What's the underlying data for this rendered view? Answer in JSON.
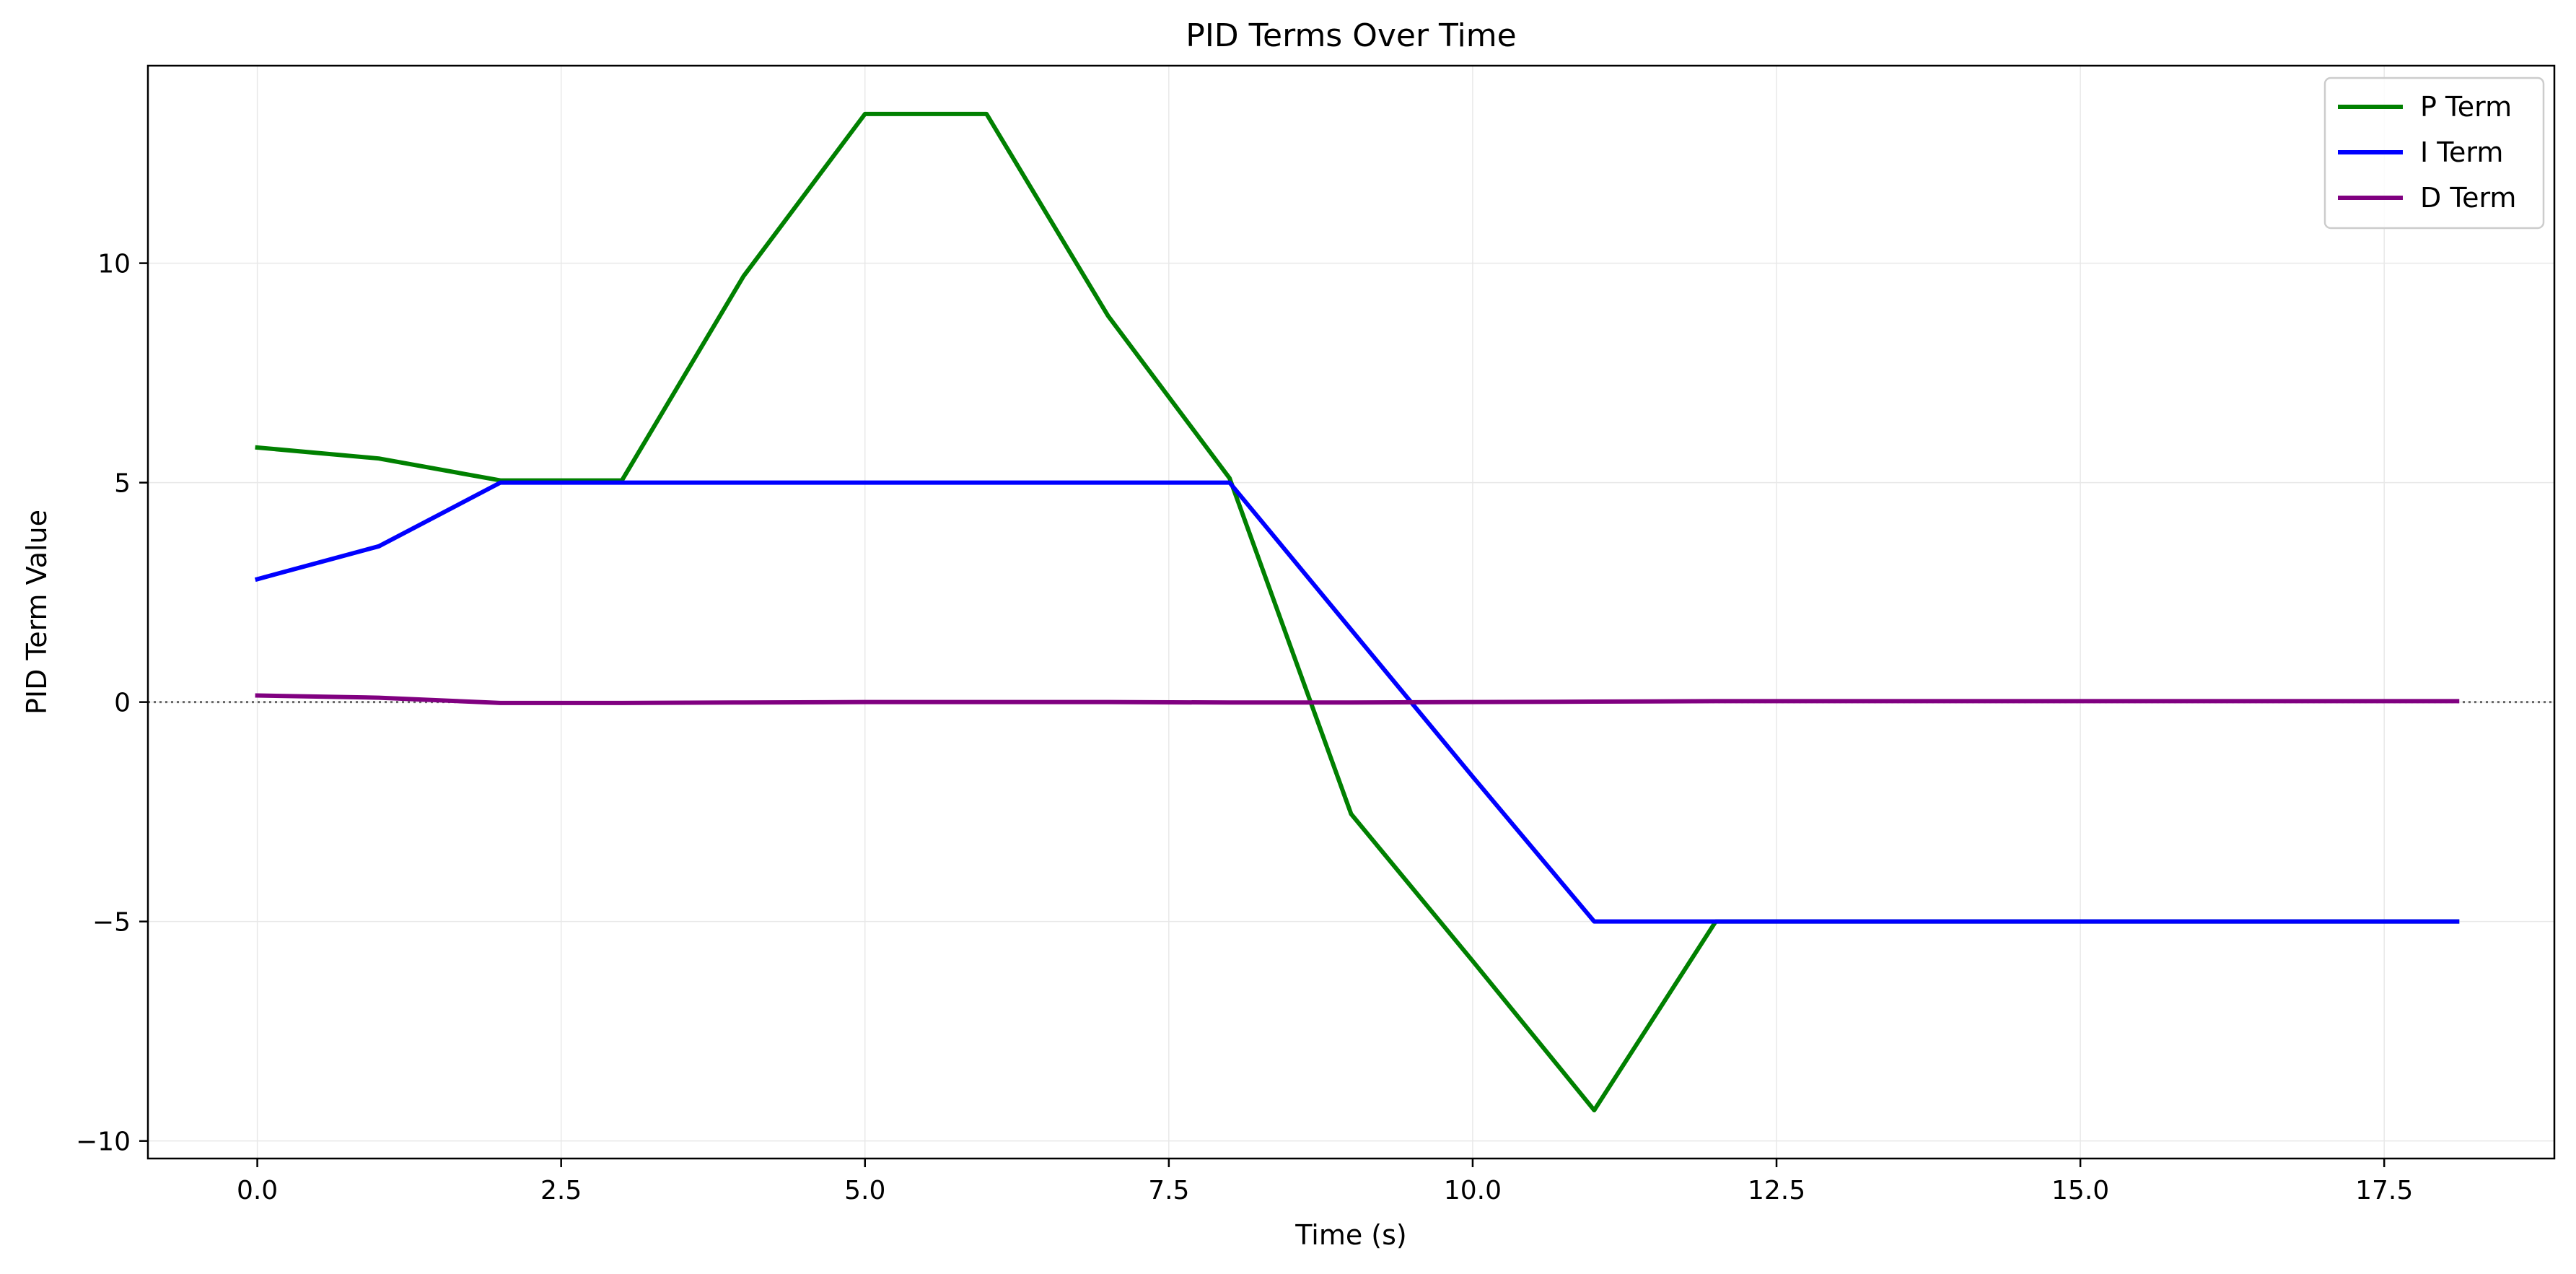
{
  "chart_data": {
    "type": "line",
    "title": "PID Terms Over Time",
    "xlabel": "Time (s)",
    "ylabel": "PID Term Value",
    "xlim": [
      -0.9,
      18.9
    ],
    "ylim": [
      -10.4,
      14.5
    ],
    "xticks": [
      0.0,
      2.5,
      5.0,
      7.5,
      10.0,
      12.5,
      15.0,
      17.5
    ],
    "xtick_labels": [
      "0.0",
      "2.5",
      "5.0",
      "7.5",
      "10.0",
      "12.5",
      "15.0",
      "17.5"
    ],
    "yticks": [
      -10,
      -5,
      0,
      5,
      10
    ],
    "ytick_labels": [
      "−10",
      "−5",
      "0",
      "5",
      "10"
    ],
    "grid": true,
    "legend_position": "top-right",
    "reference_line": {
      "y": 0,
      "style": "dotted",
      "color": "#666666"
    },
    "x": [
      0,
      1,
      2,
      3,
      4,
      5,
      6,
      7,
      8,
      9,
      10,
      11,
      12,
      13,
      14,
      15,
      16,
      17,
      18.1
    ],
    "series": [
      {
        "name": "P Term",
        "color": "#008000",
        "values": [
          5.8,
          5.55,
          5.05,
          5.05,
          9.7,
          13.4,
          13.4,
          8.8,
          5.1,
          -2.55,
          -5.9,
          -9.3,
          -5.0,
          -5.0,
          -5.0,
          -5.0,
          -5.0,
          -5.0,
          -5.0
        ]
      },
      {
        "name": "I Term",
        "color": "#0000ff",
        "values": [
          2.8,
          3.55,
          5.0,
          5.0,
          5.0,
          5.0,
          5.0,
          5.0,
          5.0,
          1.65,
          -1.7,
          -5.0,
          -5.0,
          -5.0,
          -5.0,
          -5.0,
          -5.0,
          -5.0,
          -5.0
        ]
      },
      {
        "name": "D Term",
        "color": "#800080",
        "values": [
          0.15,
          0.1,
          -0.02,
          -0.02,
          -0.01,
          0.0,
          0.0,
          0.0,
          -0.01,
          -0.01,
          0.0,
          0.01,
          0.02,
          0.02,
          0.02,
          0.02,
          0.02,
          0.02,
          0.02
        ]
      }
    ]
  }
}
